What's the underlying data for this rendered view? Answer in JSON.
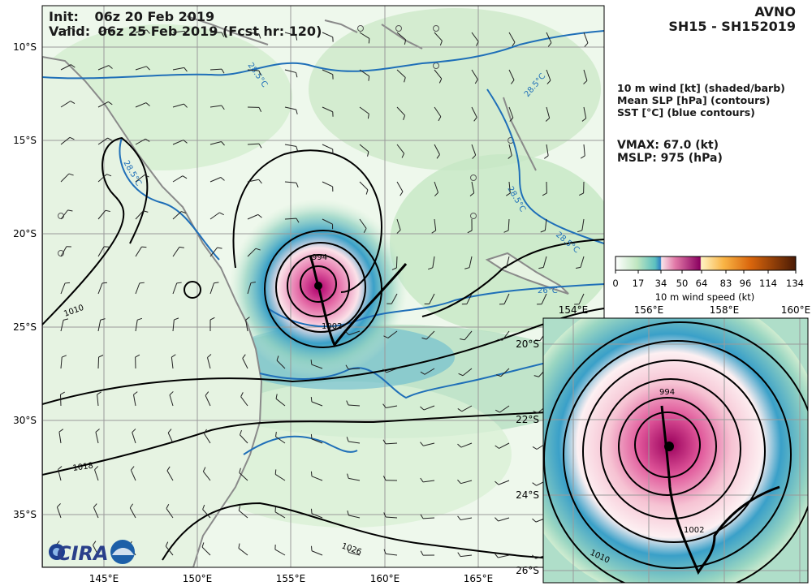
{
  "header": {
    "init_label": "Init:",
    "init_value": "06z 20 Feb 2019",
    "valid_label": "Valid:",
    "valid_value": "06z 25 Feb 2019 (Fcst hr: 120)",
    "model": "AVNO",
    "storm_id": "SH15 - SH152019"
  },
  "legend_text": {
    "line1": "10 m wind [kt] (shaded/barb)",
    "line2": "Mean SLP [hPa] (contours)",
    "line3": "SST [°C] (blue contours)"
  },
  "stats": {
    "vmax": "VMAX:  67.0 (kt)",
    "mslp": "MSLP:  975 (hPa)"
  },
  "colorbar": {
    "ticks": [
      "0",
      "17",
      "34",
      "50",
      "64",
      "83",
      "96",
      "114",
      "134"
    ],
    "label": "10 m wind speed (kt)"
  },
  "main_map": {
    "lat_labels": [
      "10°S",
      "15°S",
      "20°S",
      "25°S",
      "30°S",
      "35°S"
    ],
    "lon_labels": [
      "145°E",
      "150°E",
      "155°E",
      "160°E",
      "165°E"
    ],
    "slp_labels": [
      "994",
      "1002",
      "1010",
      "1018",
      "1026"
    ],
    "sst_labels": [
      "28.5°C",
      "28.5°C",
      "28.5°C",
      "28.5°C",
      "28.5°C",
      "26°C"
    ]
  },
  "inset_map": {
    "lat_labels": [
      "20°S",
      "22°S",
      "24°S",
      "26°S"
    ],
    "lon_labels": [
      "154°E",
      "156°E",
      "158°E",
      "160°E"
    ],
    "slp_labels": [
      "994",
      "1002",
      "1010"
    ]
  },
  "logos": {
    "cira": "CIRA"
  },
  "colors": {
    "land_light": "#eef8ec",
    "wind_green": "#9fd6a8",
    "wind_teal": "#3aa0c8",
    "wind_pink": "#f4b3c8",
    "wind_magenta": "#b0006e",
    "sst_blue": "#1f6fb8",
    "coast_gray": "#8a8a8a"
  }
}
